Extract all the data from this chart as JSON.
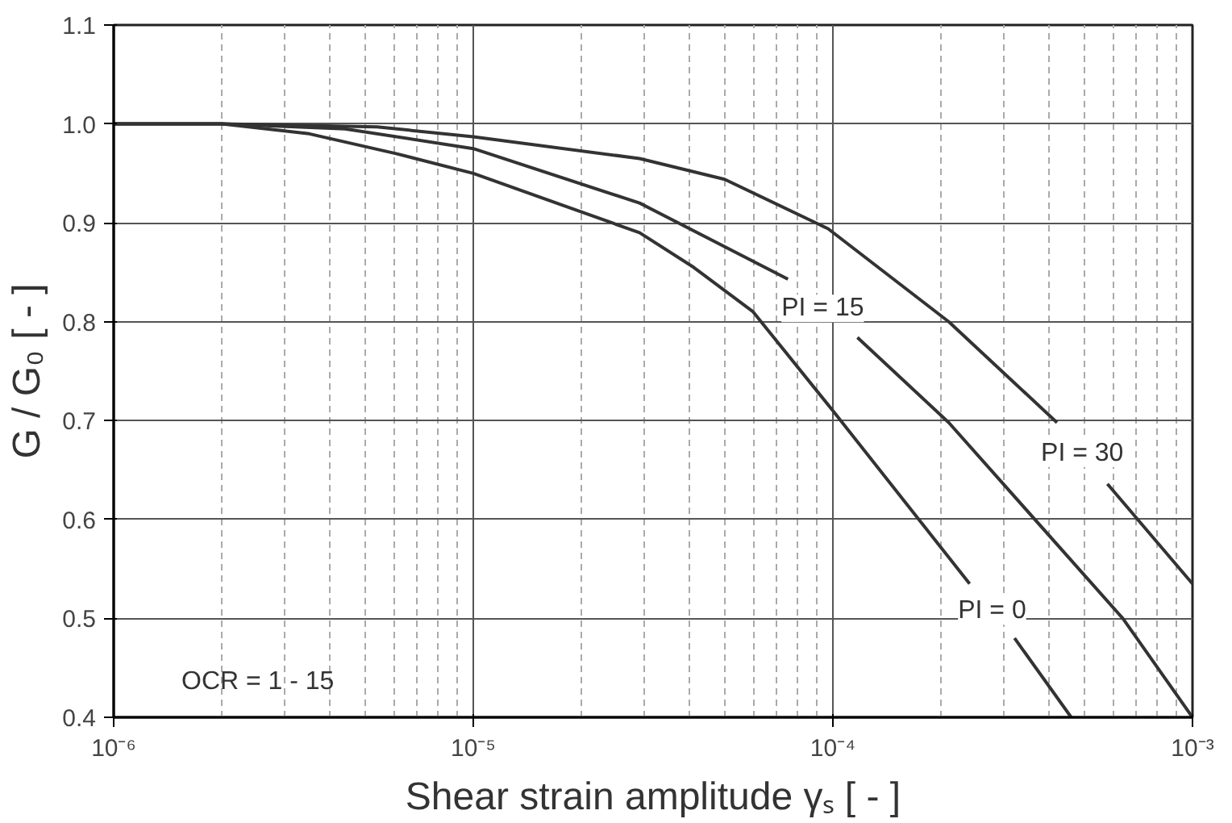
{
  "chart_data": {
    "type": "line",
    "xlabel": "Shear strain amplitude γₛ [ - ]",
    "ylabel": "G / G₀ [ - ]",
    "log": "x",
    "grid": true,
    "marker": "none",
    "line_style": "solid",
    "xlim": [
      1e-06,
      0.001
    ],
    "xticks": [
      {
        "value": 1e-06,
        "label": "10⁻⁶"
      },
      {
        "value": 1e-05,
        "label": "10⁻⁵"
      },
      {
        "value": 0.0001,
        "label": "10⁻⁴"
      },
      {
        "value": 0.001,
        "label": "10⁻³"
      }
    ],
    "ylim": [
      0.4,
      1.1
    ],
    "yticks": [
      {
        "value": 0.4,
        "label": "0.4"
      },
      {
        "value": 0.5,
        "label": "0.5"
      },
      {
        "value": 0.6,
        "label": "0.6"
      },
      {
        "value": 0.7,
        "label": "0.7"
      },
      {
        "value": 0.8,
        "label": "0.8"
      },
      {
        "value": 0.9,
        "label": "0.9"
      },
      {
        "value": 1.0,
        "label": "1.0"
      },
      {
        "value": 1.1,
        "label": "1.1"
      }
    ],
    "series": [
      {
        "name": "PI = 0",
        "color": "#333333",
        "x": [
          1e-06,
          2e-06,
          3.5e-06,
          6.1e-06,
          1e-05,
          2.9e-05,
          4.1e-05,
          6e-05,
          0.0001,
          0.00024,
          0.00028,
          0.00032,
          0.00046
        ],
        "values": [
          1.0,
          1.0,
          0.99,
          0.97,
          0.95,
          0.89,
          0.855,
          0.81,
          0.71,
          0.535,
          null,
          0.48,
          0.4
        ]
      },
      {
        "name": "PI = 15",
        "color": "#333333",
        "x": [
          1e-06,
          2e-06,
          4.4e-06,
          1e-05,
          2.9e-05,
          7.5e-05,
          9e-05,
          0.000117,
          0.00021,
          0.00064,
          0.001
        ],
        "values": [
          1.0,
          1.0,
          0.995,
          0.975,
          0.92,
          0.843,
          null,
          0.784,
          0.698,
          0.5,
          0.4
        ]
      },
      {
        "name": "PI = 30",
        "color": "#333333",
        "x": [
          1e-06,
          2e-06,
          5.4e-06,
          1e-05,
          2.9e-05,
          5e-05,
          9.7e-05,
          0.00021,
          0.00042,
          0.0005,
          0.00058,
          0.001
        ],
        "values": [
          1.0,
          1.0,
          0.997,
          0.987,
          0.965,
          0.944,
          0.894,
          0.8,
          0.698,
          null,
          0.636,
          0.535
        ]
      }
    ],
    "annotations": [
      "OCR = 1 - 15"
    ]
  }
}
